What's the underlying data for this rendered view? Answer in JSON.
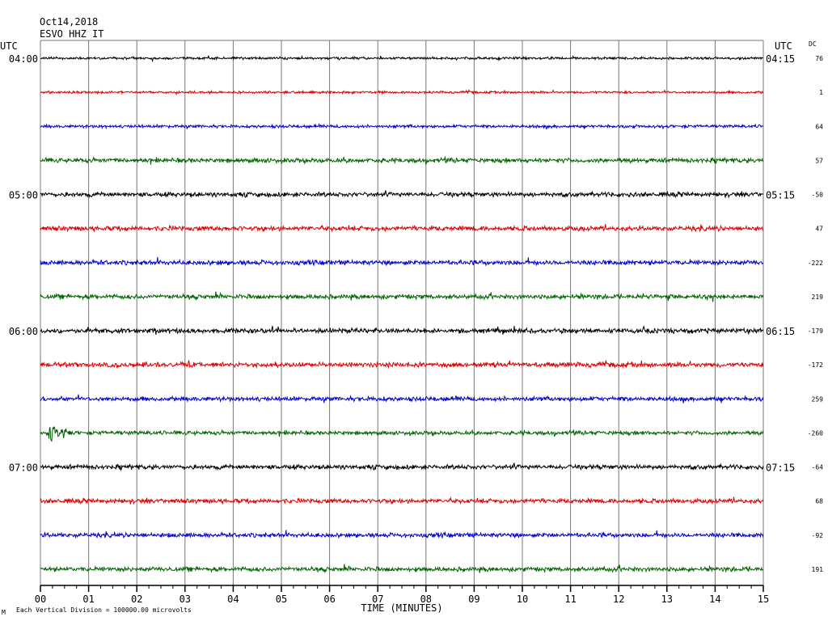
{
  "header": {
    "date": "Oct14,2018",
    "station": "ESVO HHZ IT",
    "utc_left": "UTC",
    "utc_right": "UTC",
    "dc_label": "DC"
  },
  "footer": {
    "mark": "M",
    "scale_note": "Each Vertical Division = 100000.00 microvolts"
  },
  "chart_data": {
    "type": "line",
    "title": "ESVO HHZ IT",
    "xlabel": "TIME (MINUTES)",
    "x_ticks": [
      "00",
      "01",
      "02",
      "03",
      "04",
      "05",
      "06",
      "07",
      "08",
      "09",
      "10",
      "11",
      "12",
      "13",
      "14",
      "15"
    ],
    "xlim": [
      0,
      15
    ],
    "grid": true,
    "trace_colors": [
      "#000000",
      "#e00000",
      "#0000d0",
      "#006400"
    ],
    "traces": [
      {
        "dc": "76",
        "color": "#000000",
        "left_time": "04:00",
        "right_time": "04:15",
        "amp": 1.6
      },
      {
        "dc": "1",
        "color": "#e00000",
        "amp": 1.6
      },
      {
        "dc": "64",
        "color": "#0000d0",
        "amp": 2.0
      },
      {
        "dc": "57",
        "color": "#006400",
        "amp": 3.0
      },
      {
        "dc": "-50",
        "color": "#000000",
        "left_time": "05:00",
        "right_time": "05:15",
        "amp": 3.0
      },
      {
        "dc": "47",
        "color": "#e00000",
        "amp": 3.2
      },
      {
        "dc": "-222",
        "color": "#0000d0",
        "amp": 3.2
      },
      {
        "dc": "219",
        "color": "#006400",
        "amp": 3.0
      },
      {
        "dc": "-179",
        "color": "#000000",
        "left_time": "06:00",
        "right_time": "06:15",
        "amp": 3.2
      },
      {
        "dc": "-172",
        "color": "#e00000",
        "amp": 3.2
      },
      {
        "dc": "259",
        "color": "#0000d0",
        "amp": 3.0
      },
      {
        "dc": "-260",
        "color": "#006400",
        "amp": 2.6,
        "event_minute": 0.2
      },
      {
        "dc": "-64",
        "color": "#000000",
        "left_time": "07:00",
        "right_time": "07:15",
        "amp": 3.0
      },
      {
        "dc": "68",
        "color": "#e00000",
        "amp": 3.0
      },
      {
        "dc": "-92",
        "color": "#0000d0",
        "amp": 3.0
      },
      {
        "dc": "191",
        "color": "#006400",
        "amp": 3.0
      }
    ]
  }
}
